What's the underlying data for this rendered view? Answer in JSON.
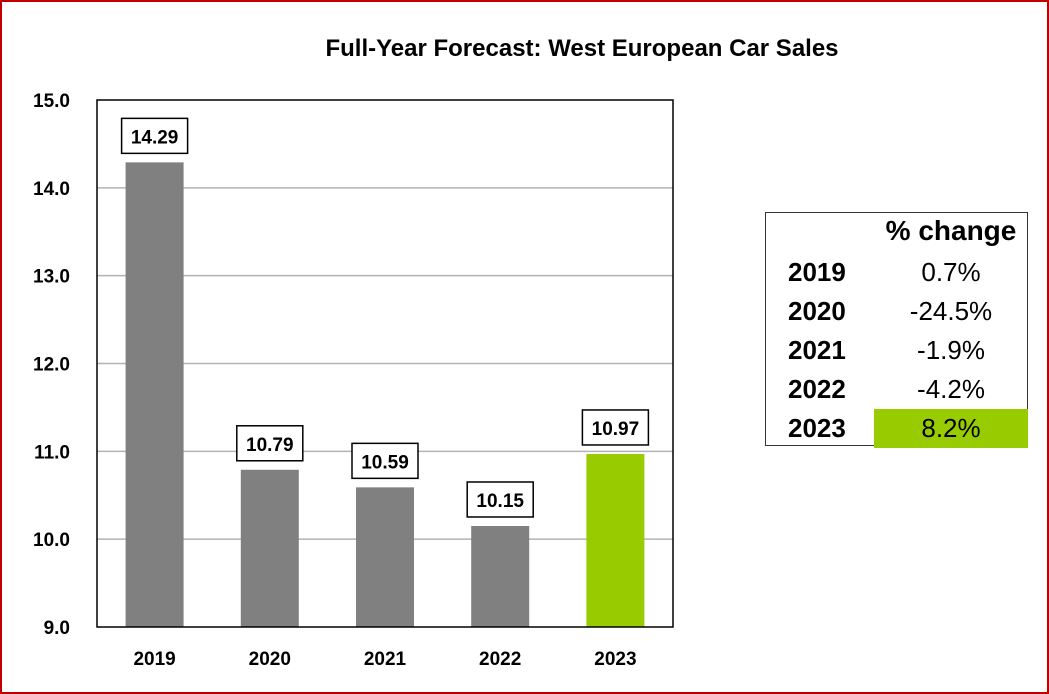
{
  "chart_data": {
    "type": "bar",
    "title": "Full-Year Forecast: West European Car Sales",
    "categories": [
      "2019",
      "2020",
      "2021",
      "2022",
      "2023"
    ],
    "values": [
      14.29,
      10.79,
      10.59,
      10.15,
      10.97
    ],
    "value_labels": [
      "14.29",
      "10.79",
      "10.59",
      "10.15",
      "10.97"
    ],
    "bar_colors": [
      "#808080",
      "#808080",
      "#808080",
      "#808080",
      "#99cc00"
    ],
    "xlabel": "",
    "ylabel": "",
    "ylim": [
      9.0,
      15.0
    ],
    "yticks": [
      "9.0",
      "10.0",
      "11.0",
      "12.0",
      "13.0",
      "14.0",
      "15.0"
    ],
    "grid": true,
    "legend": "none"
  },
  "table": {
    "header": "% change",
    "rows": [
      {
        "year": "2019",
        "change": "0.7%"
      },
      {
        "year": "2020",
        "change": "-24.5%"
      },
      {
        "year": "2021",
        "change": "-1.9%"
      },
      {
        "year": "2022",
        "change": "-4.2%"
      },
      {
        "year": "2023",
        "change": "8.2%",
        "highlight": "#99cc00"
      }
    ]
  },
  "colors": {
    "border": "#c00000",
    "bar": "#808080",
    "accent": "#99cc00",
    "grid": "#b3b3b3"
  }
}
